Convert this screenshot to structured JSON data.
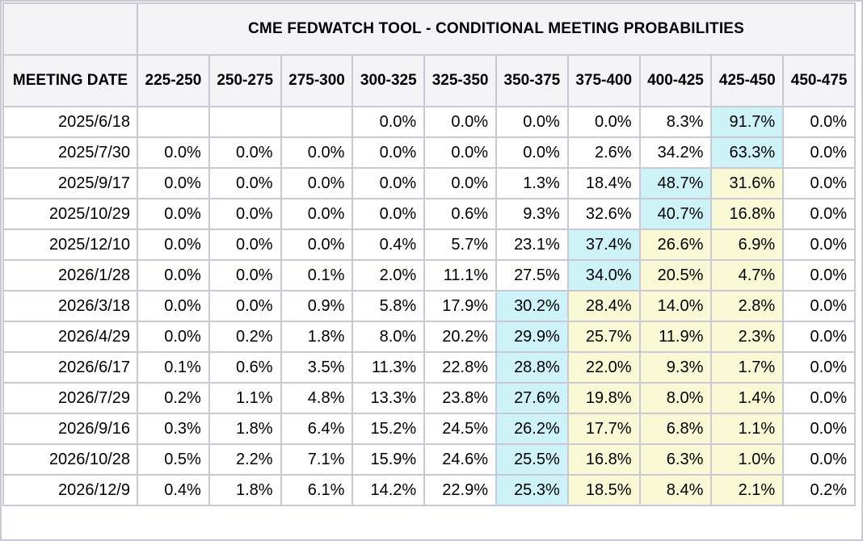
{
  "chart_data": {
    "type": "table",
    "title": "CME FEDWATCH TOOL - CONDITIONAL MEETING PROBABILITIES",
    "row_header_label": "MEETING DATE",
    "columns": [
      "225-250",
      "250-275",
      "275-300",
      "300-325",
      "325-350",
      "350-375",
      "375-400",
      "400-425",
      "425-450",
      "450-475"
    ],
    "colors": {
      "highlight_max": "#cdf3f8",
      "highlight_current": "#f9f9d6",
      "header_bg": "#f4f4f7",
      "grid": "#c9c9d6"
    },
    "rows": [
      {
        "date": "2025/6/18",
        "values": [
          "",
          "",
          "",
          "0.0%",
          "0.0%",
          "0.0%",
          "0.0%",
          "8.3%",
          "91.7%",
          "0.0%"
        ],
        "highlight": [
          "",
          "",
          "",
          "",
          "",
          "",
          "",
          "",
          "blue",
          ""
        ]
      },
      {
        "date": "2025/7/30",
        "values": [
          "0.0%",
          "0.0%",
          "0.0%",
          "0.0%",
          "0.0%",
          "0.0%",
          "2.6%",
          "34.2%",
          "63.3%",
          "0.0%"
        ],
        "highlight": [
          "",
          "",
          "",
          "",
          "",
          "",
          "",
          "",
          "blue",
          ""
        ]
      },
      {
        "date": "2025/9/17",
        "values": [
          "0.0%",
          "0.0%",
          "0.0%",
          "0.0%",
          "0.0%",
          "1.3%",
          "18.4%",
          "48.7%",
          "31.6%",
          "0.0%"
        ],
        "highlight": [
          "",
          "",
          "",
          "",
          "",
          "",
          "",
          "blue",
          "yellow",
          ""
        ]
      },
      {
        "date": "2025/10/29",
        "values": [
          "0.0%",
          "0.0%",
          "0.0%",
          "0.0%",
          "0.6%",
          "9.3%",
          "32.6%",
          "40.7%",
          "16.8%",
          "0.0%"
        ],
        "highlight": [
          "",
          "",
          "",
          "",
          "",
          "",
          "",
          "blue",
          "yellow",
          ""
        ]
      },
      {
        "date": "2025/12/10",
        "values": [
          "0.0%",
          "0.0%",
          "0.0%",
          "0.4%",
          "5.7%",
          "23.1%",
          "37.4%",
          "26.6%",
          "6.9%",
          "0.0%"
        ],
        "highlight": [
          "",
          "",
          "",
          "",
          "",
          "",
          "blue",
          "yellow",
          "yellow",
          ""
        ]
      },
      {
        "date": "2026/1/28",
        "values": [
          "0.0%",
          "0.0%",
          "0.1%",
          "2.0%",
          "11.1%",
          "27.5%",
          "34.0%",
          "20.5%",
          "4.7%",
          "0.0%"
        ],
        "highlight": [
          "",
          "",
          "",
          "",
          "",
          "",
          "blue",
          "yellow",
          "yellow",
          ""
        ]
      },
      {
        "date": "2026/3/18",
        "values": [
          "0.0%",
          "0.0%",
          "0.9%",
          "5.8%",
          "17.9%",
          "30.2%",
          "28.4%",
          "14.0%",
          "2.8%",
          "0.0%"
        ],
        "highlight": [
          "",
          "",
          "",
          "",
          "",
          "blue",
          "yellow",
          "yellow",
          "yellow",
          ""
        ]
      },
      {
        "date": "2026/4/29",
        "values": [
          "0.0%",
          "0.2%",
          "1.8%",
          "8.0%",
          "20.2%",
          "29.9%",
          "25.7%",
          "11.9%",
          "2.3%",
          "0.0%"
        ],
        "highlight": [
          "",
          "",
          "",
          "",
          "",
          "blue",
          "yellow",
          "yellow",
          "yellow",
          ""
        ]
      },
      {
        "date": "2026/6/17",
        "values": [
          "0.1%",
          "0.6%",
          "3.5%",
          "11.3%",
          "22.8%",
          "28.8%",
          "22.0%",
          "9.3%",
          "1.7%",
          "0.0%"
        ],
        "highlight": [
          "",
          "",
          "",
          "",
          "",
          "blue",
          "yellow",
          "yellow",
          "yellow",
          ""
        ]
      },
      {
        "date": "2026/7/29",
        "values": [
          "0.2%",
          "1.1%",
          "4.8%",
          "13.3%",
          "23.8%",
          "27.6%",
          "19.8%",
          "8.0%",
          "1.4%",
          "0.0%"
        ],
        "highlight": [
          "",
          "",
          "",
          "",
          "",
          "blue",
          "yellow",
          "yellow",
          "yellow",
          ""
        ]
      },
      {
        "date": "2026/9/16",
        "values": [
          "0.3%",
          "1.8%",
          "6.4%",
          "15.2%",
          "24.5%",
          "26.2%",
          "17.7%",
          "6.8%",
          "1.1%",
          "0.0%"
        ],
        "highlight": [
          "",
          "",
          "",
          "",
          "",
          "blue",
          "yellow",
          "yellow",
          "yellow",
          ""
        ]
      },
      {
        "date": "2026/10/28",
        "values": [
          "0.5%",
          "2.2%",
          "7.1%",
          "15.9%",
          "24.6%",
          "25.5%",
          "16.8%",
          "6.3%",
          "1.0%",
          "0.0%"
        ],
        "highlight": [
          "",
          "",
          "",
          "",
          "",
          "blue",
          "yellow",
          "yellow",
          "yellow",
          ""
        ]
      },
      {
        "date": "2026/12/9",
        "values": [
          "0.4%",
          "1.8%",
          "6.1%",
          "14.2%",
          "22.9%",
          "25.3%",
          "18.5%",
          "8.4%",
          "2.1%",
          "0.2%"
        ],
        "highlight": [
          "",
          "",
          "",
          "",
          "",
          "blue",
          "yellow",
          "yellow",
          "yellow",
          ""
        ]
      }
    ]
  }
}
